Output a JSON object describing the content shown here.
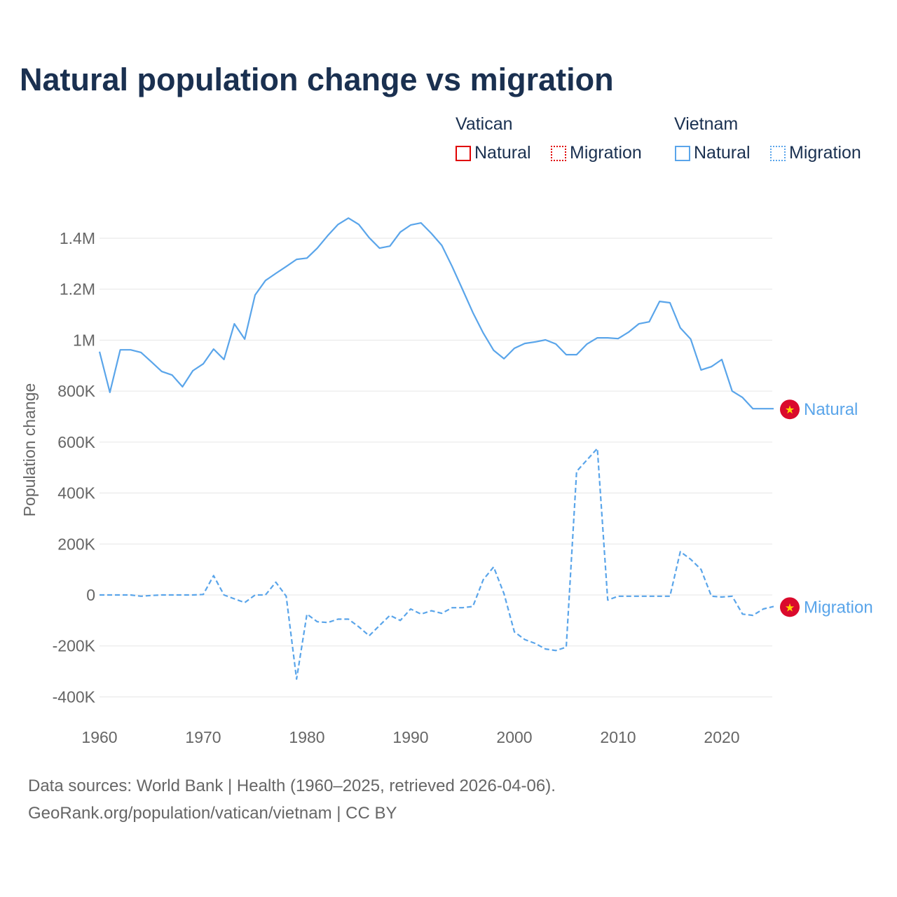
{
  "title": "Natural population change vs migration",
  "legend": {
    "groups": [
      {
        "name": "Vatican",
        "color": "#e00000",
        "items": [
          "Natural",
          "Migration"
        ]
      },
      {
        "name": "Vietnam",
        "color": "#5aa5ea",
        "items": [
          "Natural",
          "Migration"
        ]
      }
    ]
  },
  "footer": {
    "line1": "Data sources: World Bank | Health (1960–2025, retrieved 2026-04-06).",
    "line2": "GeoRank.org/population/vatican/vietnam | CC BY"
  },
  "chart_data": {
    "type": "line",
    "title": "Natural population change vs migration",
    "xlabel": "",
    "ylabel": "Population change",
    "xlim": [
      1960,
      2025
    ],
    "ylim": [
      -400000,
      1400000
    ],
    "x_ticks": [
      1960,
      1970,
      1980,
      1990,
      2000,
      2010,
      2020
    ],
    "x_tick_labels": [
      "1960",
      "1970",
      "1980",
      "1990",
      "2000",
      "2010",
      "2020"
    ],
    "y_ticks": [
      -400000,
      -200000,
      0,
      200000,
      400000,
      600000,
      800000,
      1000000,
      1200000,
      1400000
    ],
    "y_tick_labels": [
      "-400K",
      "-200K",
      "0",
      "200K",
      "400K",
      "600K",
      "800K",
      "1M",
      "1.2M",
      "1.4M"
    ],
    "grid": true,
    "x_start": 1960,
    "series": [
      {
        "name": "Vietnam Natural",
        "end_label": "Natural",
        "color": "#5aa5ea",
        "dash": "solid",
        "values": [
          955000,
          795000,
          962000,
          962000,
          952000,
          915000,
          877000,
          863000,
          817000,
          880000,
          907000,
          965000,
          924000,
          1064000,
          1004000,
          1177000,
          1234000,
          1262000,
          1289000,
          1317000,
          1322000,
          1361000,
          1410000,
          1454000,
          1479000,
          1454000,
          1402000,
          1361000,
          1369000,
          1424000,
          1452000,
          1460000,
          1419000,
          1372000,
          1289000,
          1199000,
          1108000,
          1028000,
          960000,
          927000,
          968000,
          987000,
          993000,
          1001000,
          985000,
          943000,
          943000,
          985000,
          1009000,
          1009000,
          1006000,
          1031000,
          1064000,
          1072000,
          1152000,
          1147000,
          1048000,
          1004000,
          883000,
          896000,
          924000,
          800000,
          775000,
          731000,
          731000,
          731000
        ]
      },
      {
        "name": "Vietnam Migration",
        "end_label": "Migration",
        "color": "#5aa5ea",
        "dash": "dashed",
        "values": [
          0,
          0,
          0,
          0,
          -5000,
          -2000,
          0,
          0,
          0,
          0,
          2000,
          76000,
          0,
          -15000,
          -30000,
          0,
          0,
          50000,
          -5000,
          -330000,
          -75000,
          -105000,
          -108000,
          -95000,
          -95000,
          -125000,
          -160000,
          -120000,
          -80000,
          -100000,
          -55000,
          -75000,
          -62000,
          -72000,
          -50000,
          -50000,
          -45000,
          60000,
          110000,
          5000,
          -145000,
          -175000,
          -190000,
          -212000,
          -218000,
          -205000,
          485000,
          530000,
          575000,
          -20000,
          -5000,
          -5000,
          -5000,
          -5000,
          -5000,
          -5000,
          170000,
          140000,
          100000,
          -5000,
          -8000,
          -5000,
          -75000,
          -80000,
          -55000,
          -45000
        ]
      }
    ]
  }
}
